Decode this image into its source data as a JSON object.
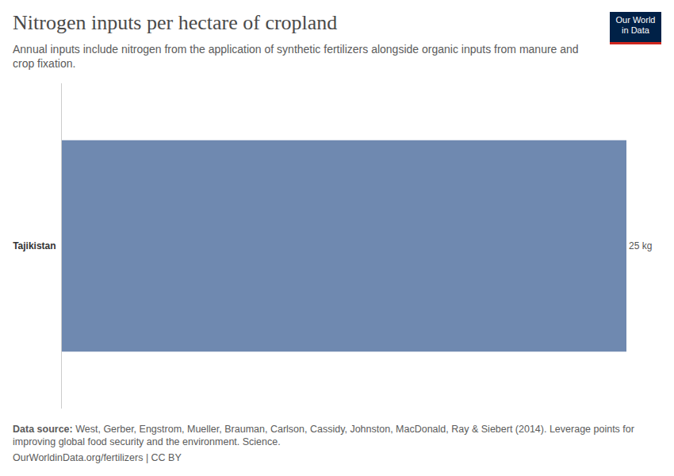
{
  "chart_data": {
    "type": "bar",
    "orientation": "horizontal",
    "title": "Nitrogen inputs per hectare of cropland",
    "subtitle": "Annual inputs include nitrogen from the application of synthetic fertilizers alongside organic inputs from manure and crop fixation.",
    "categories": [
      "Tajikistan"
    ],
    "values": [
      25
    ],
    "value_labels": [
      "25 kg"
    ],
    "data_labels": true,
    "color": "#6f89b0",
    "xlim": [
      0,
      25
    ],
    "xticks": [],
    "grid": false,
    "tick_labels": "y",
    "source_label": "Data source:",
    "source": "West, Gerber, Engstrom, Mueller, Brauman, Carlson, Cassidy, Johnston, MacDonald, Ray & Siebert (2014). Leverage points for improving global food security and the environment. Science.",
    "url": "OurWorldinData.org/fertilizers | CC BY",
    "logo": [
      "Our World",
      "in Data"
    ]
  }
}
